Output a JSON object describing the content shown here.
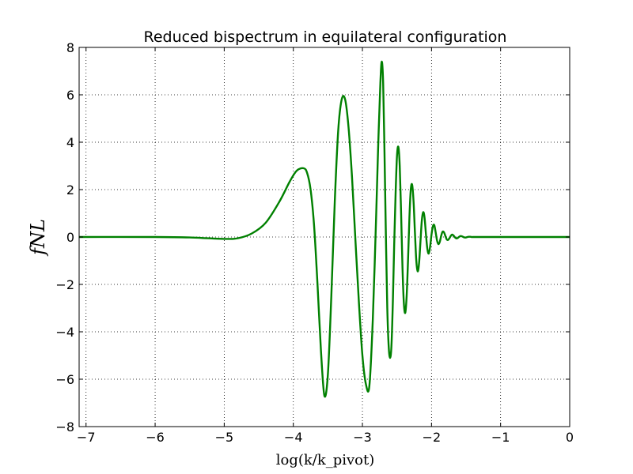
{
  "chart_data": {
    "type": "line",
    "title": "Reduced bispectrum in equilateral configuration",
    "ylabel": "fNL",
    "xlabel": "log(k/k_pivot)",
    "xlim": [
      -7.1,
      0
    ],
    "ylim": [
      -8,
      8
    ],
    "xticks": [
      -7,
      -6,
      -5,
      -4,
      -3,
      -2,
      -1,
      0
    ],
    "yticks": [
      -8,
      -6,
      -4,
      -2,
      0,
      2,
      4,
      6,
      8
    ],
    "grid": true,
    "series": [
      {
        "color": "#008000",
        "x": [
          -7.1,
          -6.0,
          -5.5,
          -5.0,
          -4.8,
          -4.6,
          -4.4,
          -4.2,
          -4.05,
          -3.95,
          -3.85,
          -3.8,
          -3.75,
          -3.7,
          -3.65,
          -3.6,
          -3.55,
          -3.5,
          -3.45,
          -3.4,
          -3.35,
          -3.3,
          -3.25,
          -3.2,
          -3.15,
          -3.1,
          -3.05,
          -3.0,
          -2.95,
          -2.9,
          -2.85,
          -2.8,
          -2.77,
          -2.74,
          -2.72,
          -2.7,
          -2.68,
          -2.66,
          -2.64,
          -2.62,
          -2.6,
          -2.58,
          -2.56,
          -2.54,
          -2.52,
          -2.5,
          -2.48,
          -2.46,
          -2.44,
          -2.42,
          -2.4,
          -2.38,
          -2.36,
          -2.34,
          -2.32,
          -2.3,
          -2.28,
          -2.26,
          -2.24,
          -2.22,
          -2.2,
          -2.18,
          -2.16,
          -2.14,
          -2.12,
          -2.1,
          -2.08,
          -2.06,
          -2.04,
          -2.02,
          -2.0,
          -1.98,
          -1.96,
          -1.94,
          -1.92,
          -1.9,
          -1.88,
          -1.86,
          -1.84,
          -1.82,
          -1.8,
          -1.78,
          -1.76,
          -1.74,
          -1.72,
          -1.7,
          -1.68,
          -1.66,
          -1.64,
          -1.62,
          -1.6,
          -1.58,
          -1.56,
          -1.54,
          -1.52,
          -1.5,
          -1.48,
          -1.46,
          -1.44,
          -1.42,
          -1.4,
          -1.35,
          -1.3,
          -1.0,
          -0.5,
          0.0
        ],
        "y": [
          0.0,
          0.0,
          -0.02,
          -0.08,
          -0.05,
          0.15,
          0.6,
          1.5,
          2.35,
          2.8,
          2.9,
          2.7,
          2.0,
          0.5,
          -2.0,
          -4.8,
          -6.7,
          -5.8,
          -2.5,
          1.5,
          4.5,
          5.8,
          5.8,
          4.6,
          2.5,
          -0.2,
          -2.8,
          -5.0,
          -6.2,
          -6.3,
          -3.5,
          1.0,
          4.0,
          6.5,
          7.4,
          6.5,
          3.5,
          0.0,
          -3.0,
          -4.6,
          -5.1,
          -4.6,
          -2.8,
          -0.3,
          1.8,
          3.4,
          3.8,
          3.0,
          1.0,
          -1.3,
          -2.8,
          -3.2,
          -2.5,
          -1.0,
          0.8,
          2.0,
          2.2,
          1.5,
          0.2,
          -1.0,
          -1.45,
          -1.1,
          -0.2,
          0.7,
          1.05,
          0.8,
          0.1,
          -0.5,
          -0.7,
          -0.4,
          0.1,
          0.45,
          0.5,
          0.2,
          -0.15,
          -0.3,
          -0.2,
          0.05,
          0.22,
          0.2,
          0.05,
          -0.1,
          -0.12,
          -0.05,
          0.05,
          0.1,
          0.06,
          -0.02,
          -0.06,
          -0.04,
          0.01,
          0.04,
          0.03,
          0.0,
          -0.02,
          -0.02,
          0.0,
          0.01,
          0.01,
          0.0,
          0.0,
          0.0,
          0.0,
          0.0,
          0.0,
          0.0
        ]
      }
    ]
  }
}
